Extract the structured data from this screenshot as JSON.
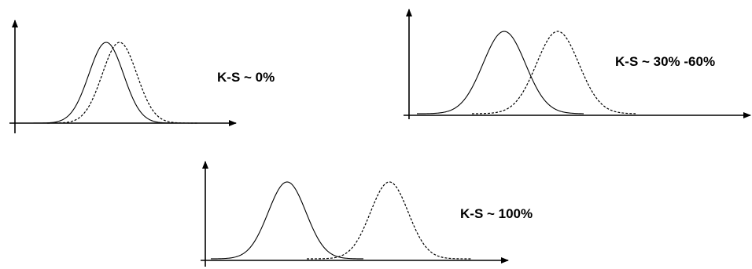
{
  "panels": [
    {
      "label": "K-S ~ 0%"
    },
    {
      "label": "K-S ~ 30% -60%"
    },
    {
      "label": "K-S ~ 100%"
    }
  ],
  "style": {
    "line_color": "#000000",
    "background": "#ffffff"
  }
}
